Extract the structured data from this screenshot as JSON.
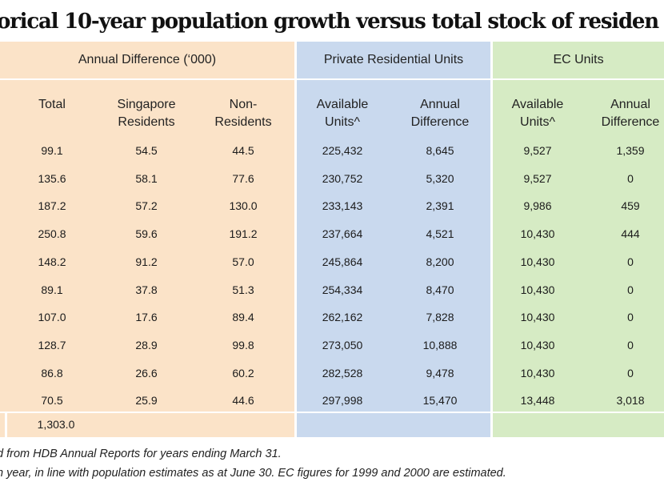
{
  "title": "orical 10-year population growth versus total stock of residen",
  "groups": {
    "annual": "Annual Difference (‘000)",
    "private": "Private Residential Units",
    "ec": "EC Units"
  },
  "columns": {
    "total": "Total",
    "sg_res": "Singapore\nResidents",
    "non_res": "Non-\nResidents",
    "priv_avail": "Available\nUnits^",
    "priv_diff": "Annual\nDifference",
    "ec_avail": "Available\nUnits^",
    "ec_diff": "Annual\nDifference"
  },
  "rows": [
    {
      "total": "99.1",
      "sg": "54.5",
      "non": "44.5",
      "pa": "225,432",
      "pd": "8,645",
      "ea": "9,527",
      "ed": "1,359"
    },
    {
      "total": "135.6",
      "sg": "58.1",
      "non": "77.6",
      "pa": "230,752",
      "pd": "5,320",
      "ea": "9,527",
      "ed": "0"
    },
    {
      "total": "187.2",
      "sg": "57.2",
      "non": "130.0",
      "pa": "233,143",
      "pd": "2,391",
      "ea": "9,986",
      "ed": "459"
    },
    {
      "total": "250.8",
      "sg": "59.6",
      "non": "191.2",
      "pa": "237,664",
      "pd": "4,521",
      "ea": "10,430",
      "ed": "444"
    },
    {
      "total": "148.2",
      "sg": "91.2",
      "non": "57.0",
      "pa": "245,864",
      "pd": "8,200",
      "ea": "10,430",
      "ed": "0"
    },
    {
      "total": "89.1",
      "sg": "37.8",
      "non": "51.3",
      "pa": "254,334",
      "pd": "8,470",
      "ea": "10,430",
      "ed": "0"
    },
    {
      "total": "107.0",
      "sg": "17.6",
      "non": "89.4",
      "pa": "262,162",
      "pd": "7,828",
      "ea": "10,430",
      "ed": "0"
    },
    {
      "total": "128.7",
      "sg": "28.9",
      "non": "99.8",
      "pa": "273,050",
      "pd": "10,888",
      "ea": "10,430",
      "ed": "0"
    },
    {
      "total": "86.8",
      "sg": "26.6",
      "non": "60.2",
      "pa": "282,528",
      "pd": "9,478",
      "ea": "10,430",
      "ed": "0"
    },
    {
      "total": "70.5",
      "sg": "25.9",
      "non": "44.6",
      "pa": "297,998",
      "pd": "15,470",
      "ea": "13,448",
      "ed": "3,018"
    }
  ],
  "sum_total": "1,303.0",
  "notes": [
    "d from HDB Annual Reports for years ending March 31.",
    "h year, in line with population estimates as at June 30. EC figures for 1999 and 2000 are estimated."
  ]
}
